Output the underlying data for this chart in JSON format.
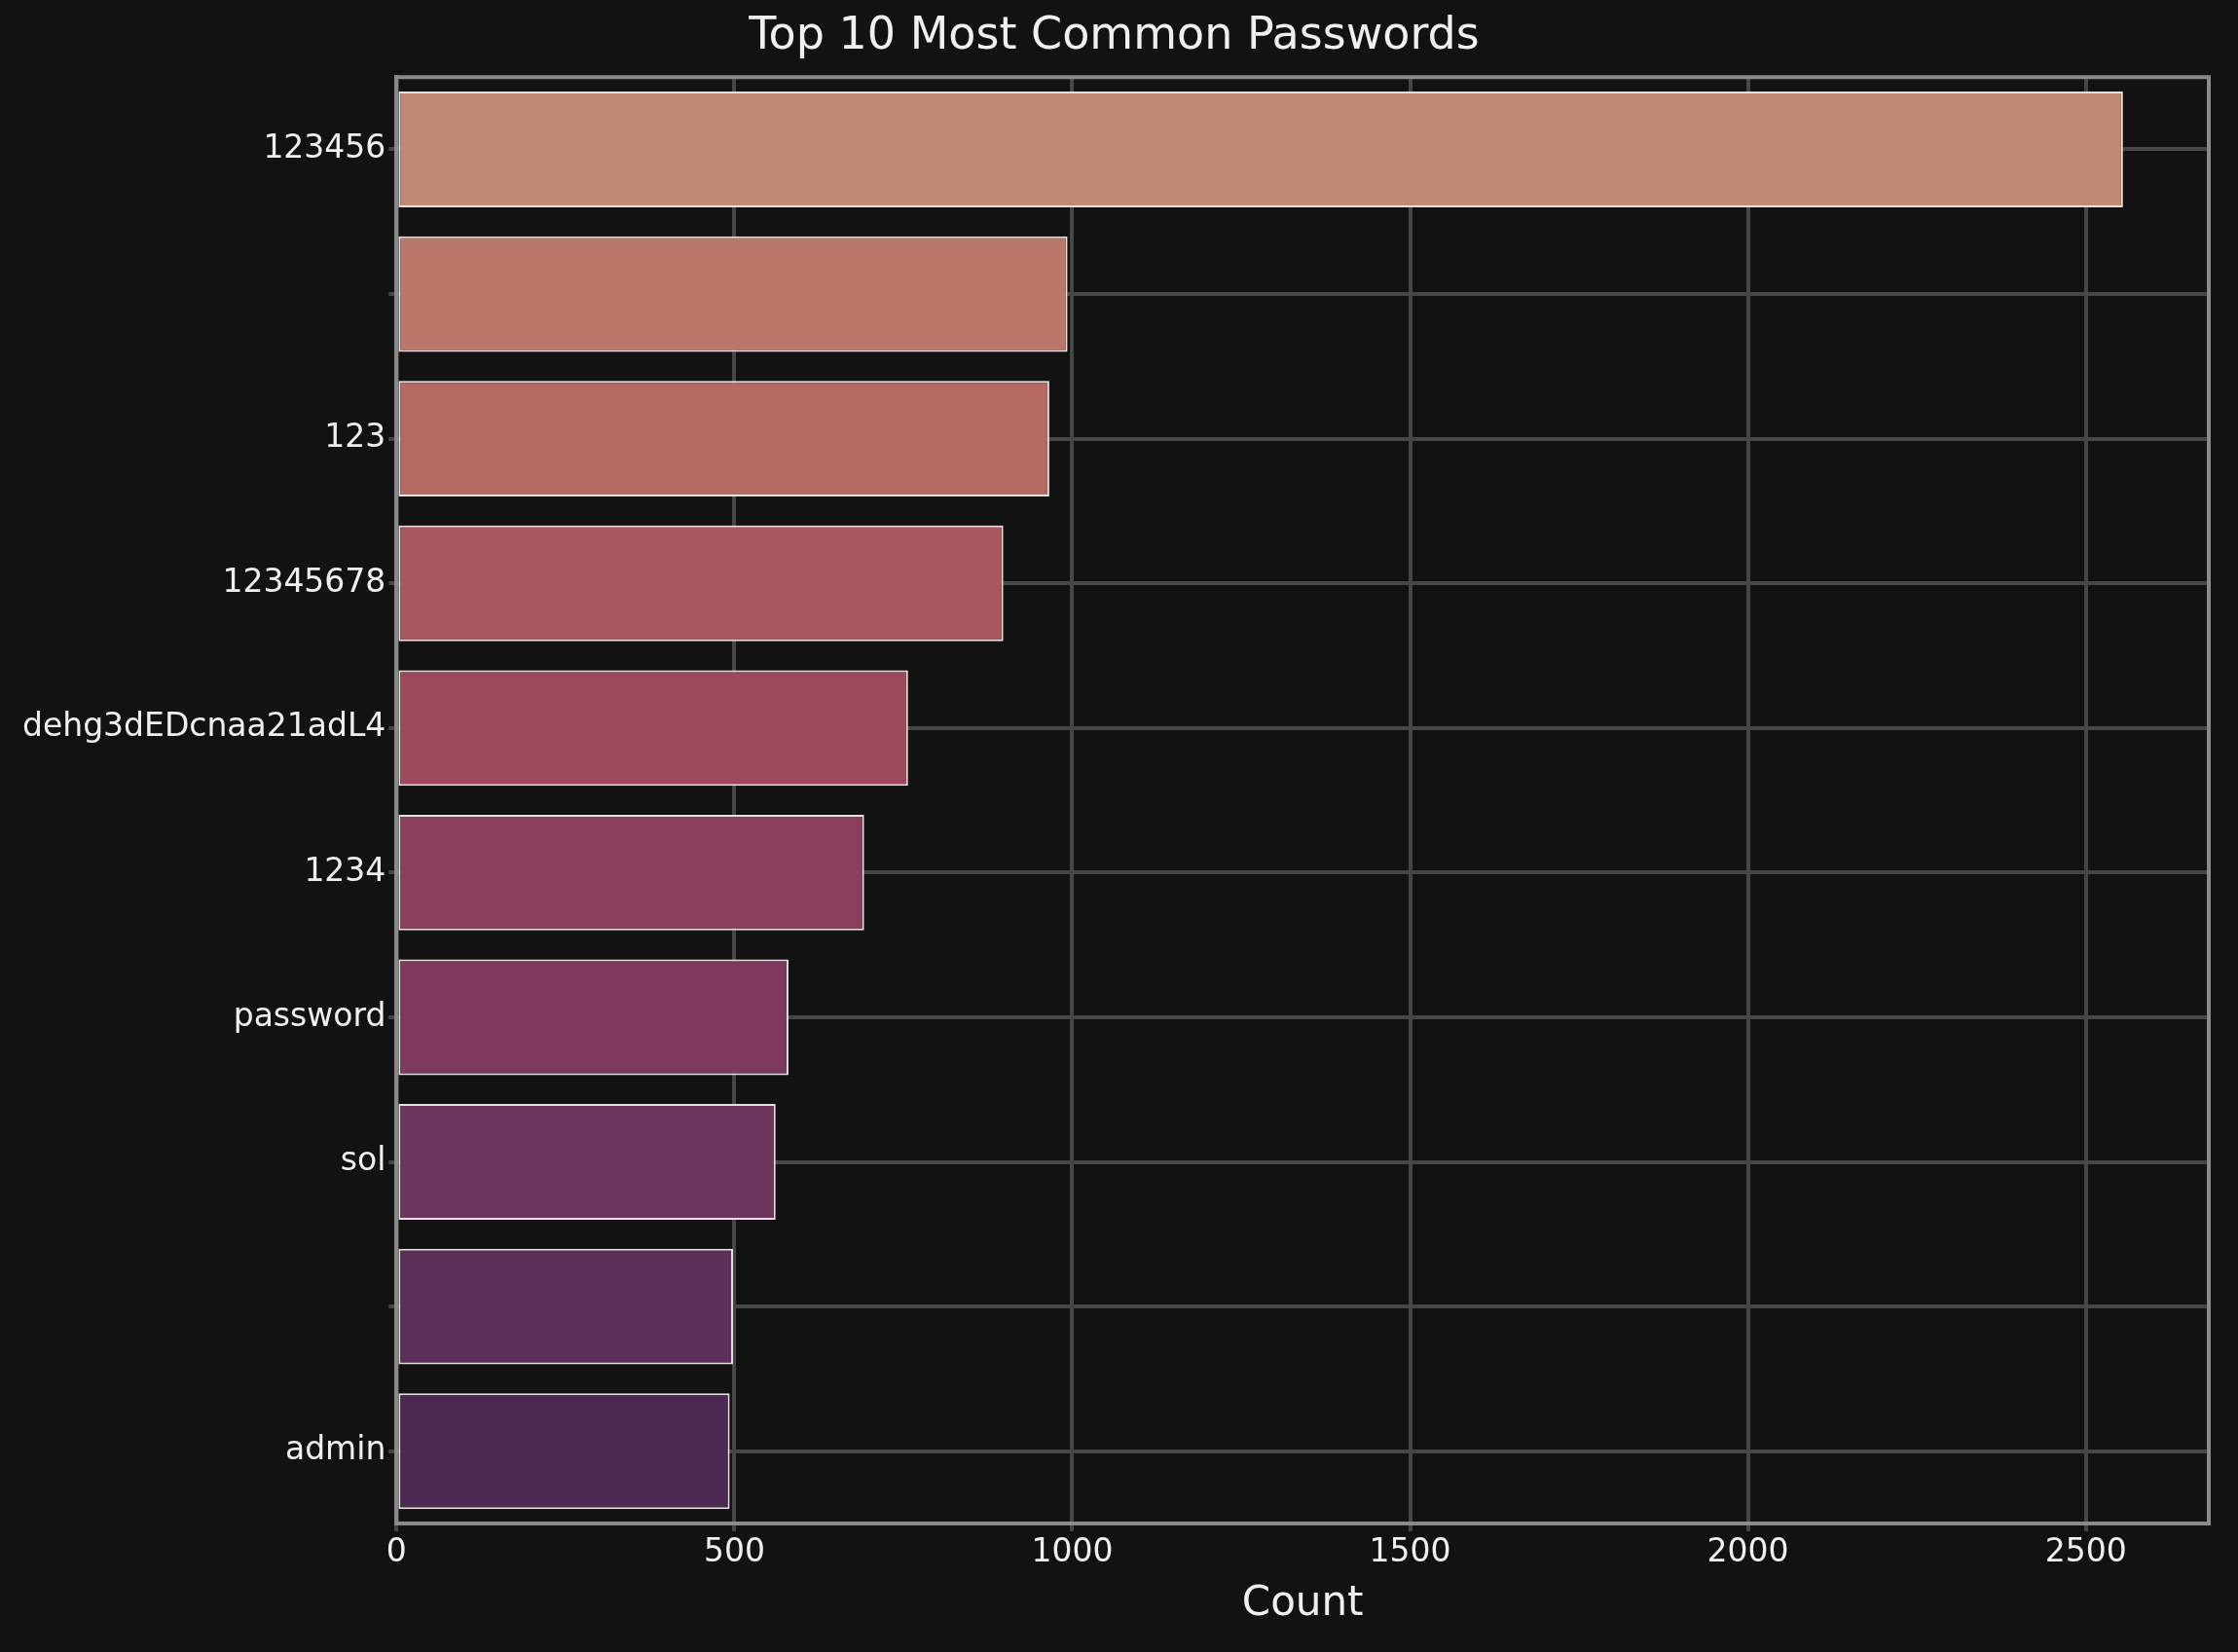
{
  "chart_data": {
    "type": "bar",
    "orientation": "horizontal",
    "title": "Top 10 Most Common Passwords",
    "xlabel": "Count",
    "categories": [
      "123456",
      null,
      "123",
      "12345678",
      "dehg3dEDcnaa21adL4",
      "1234",
      "password",
      "sol",
      null,
      "admin"
    ],
    "values": [
      2555,
      993,
      966,
      898,
      757,
      692,
      580,
      561,
      498,
      493
    ],
    "colors": [
      "#bf8a74",
      "#b9786a",
      "#b56a62",
      "#a9575d",
      "#9e485d",
      "#8b3f5e",
      "#7d395e",
      "#6c355c",
      "#5c2e5a",
      "#4b2953"
    ],
    "xlim": [
      0,
      2682
    ],
    "xticks": [
      0,
      500,
      1000,
      1500,
      2000,
      2500
    ],
    "grid": true,
    "legend": false
  }
}
